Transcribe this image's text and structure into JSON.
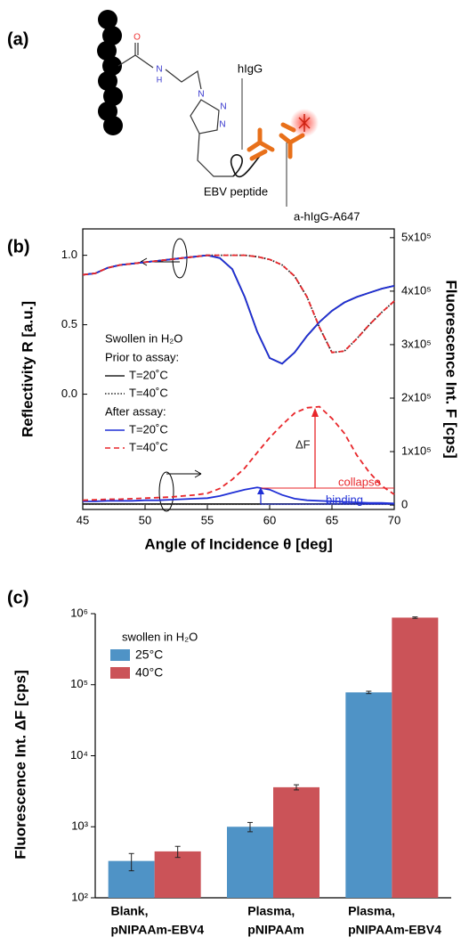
{
  "panels": {
    "a": "(a)",
    "b": "(b)",
    "c": "(c)"
  },
  "diagram": {
    "atoms": [
      "O",
      "N",
      "H",
      "N",
      "N",
      "N"
    ],
    "labels": [
      "hIgG",
      "EBV peptide",
      "a-hIgG-A647"
    ]
  },
  "chart_data": [
    {
      "type": "line",
      "x_label": "Angle of Incidence θ [deg]",
      "y_label": "Reflectivity R [a.u.]",
      "y2_label": "Fluorescence Int. F [cps]",
      "x": [
        45,
        46,
        47,
        48,
        49,
        50,
        51,
        52,
        53,
        54,
        55,
        56,
        57,
        58,
        59,
        60,
        61,
        62,
        63,
        64,
        65,
        66,
        67,
        68,
        69,
        70
      ],
      "xlim": [
        45,
        70
      ],
      "xticks": [
        45,
        50,
        55,
        60,
        65,
        70
      ],
      "ylim": [
        -0.83,
        1.19
      ],
      "yticks": [
        {
          "value": 0,
          "label": "0.0"
        },
        0.5,
        {
          "value": 1,
          "label": "1.0"
        }
      ],
      "y2lim": [
        -8200,
        516400
      ],
      "y2ticks": [
        0,
        {
          "value": 100000,
          "label": "1x10⁵"
        },
        {
          "value": 200000,
          "label": "2x10⁵"
        },
        {
          "value": 300000,
          "label": "3x10⁵"
        },
        {
          "value": 400000,
          "label": "4x10⁵"
        },
        {
          "value": 500000,
          "label": "5x10⁵"
        }
      ],
      "legend_title": "Swollen in H₂O",
      "groups": [
        {
          "name": "Prior to assay:",
          "series": [
            {
              "name": "T=20˚C",
              "color": "#222222",
              "dash": "solid",
              "values": [
                0.86,
                0.87,
                0.91,
                0.93,
                0.94,
                0.95,
                0.96,
                0.97,
                0.98,
                0.99,
                1.0,
                0.98,
                0.9,
                0.7,
                0.45,
                0.26,
                0.22,
                0.3,
                0.42,
                0.52,
                0.6,
                0.66,
                0.7,
                0.73,
                0.76,
                0.78
              ],
              "y2_values": [
                2000,
                2000,
                2000,
                2000,
                2000,
                2000,
                2000,
                2000,
                2000,
                2000,
                2000,
                2000,
                2000,
                2000,
                2000,
                2000,
                2000,
                2000,
                2000,
                2000,
                2000,
                2000,
                2000,
                2000,
                2000,
                2000
              ]
            },
            {
              "name": "T=40˚C",
              "color": "#222222",
              "dash": "dotted",
              "values": [
                0.86,
                0.87,
                0.91,
                0.93,
                0.94,
                0.95,
                0.96,
                0.97,
                0.98,
                0.99,
                1.0,
                1.0,
                1.0,
                1.0,
                0.99,
                0.97,
                0.93,
                0.85,
                0.7,
                0.48,
                0.3,
                0.31,
                0.4,
                0.5,
                0.59,
                0.67
              ],
              "y2_values": [
                2000,
                2000,
                2000,
                2000,
                2000,
                2000,
                2000,
                2000,
                2000,
                2000,
                2000,
                2000,
                2000,
                2000,
                2000,
                2000,
                2000,
                2000,
                2000,
                2000,
                2000,
                2000,
                2000,
                2000,
                2000,
                2000
              ]
            }
          ]
        },
        {
          "name": "After assay:",
          "series": [
            {
              "name": "T=20˚C",
              "color": "#1f2fd6",
              "dash": "solid",
              "values": [
                0.86,
                0.87,
                0.91,
                0.93,
                0.94,
                0.95,
                0.96,
                0.97,
                0.98,
                0.99,
                1.0,
                0.98,
                0.9,
                0.7,
                0.45,
                0.26,
                0.22,
                0.3,
                0.42,
                0.52,
                0.6,
                0.66,
                0.7,
                0.73,
                0.76,
                0.78
              ],
              "y2_values": [
                7000,
                7000,
                8000,
                8000,
                8000,
                9000,
                9000,
                10000,
                11000,
                12000,
                13000,
                17000,
                23000,
                29000,
                33000,
                29000,
                19000,
                12000,
                9000,
                8000,
                7000,
                6000,
                5000,
                4000,
                4000,
                3000
              ]
            },
            {
              "name": "T=40˚C",
              "color": "#e8262a",
              "dash": "dashed",
              "values": [
                0.86,
                0.87,
                0.91,
                0.93,
                0.94,
                0.95,
                0.96,
                0.97,
                0.98,
                0.99,
                1.0,
                1.0,
                1.0,
                1.0,
                0.99,
                0.97,
                0.93,
                0.85,
                0.7,
                0.48,
                0.3,
                0.31,
                0.4,
                0.5,
                0.59,
                0.67
              ],
              "y2_values": [
                9000,
                10000,
                11000,
                11000,
                12000,
                13000,
                14000,
                15000,
                17000,
                19000,
                22000,
                31000,
                48000,
                69000,
                98000,
                126000,
                150000,
                172000,
                182000,
                184000,
                162000,
                134000,
                93000,
                61000,
                36000,
                20000
              ]
            }
          ]
        }
      ],
      "annotations": [
        "ΔF",
        "collapse",
        "binding"
      ]
    },
    {
      "type": "bar",
      "y_label": "Fluorescence Int. ΔF [cps]",
      "log_y": true,
      "ylim": [
        100,
        1000000
      ],
      "yticks": [
        {
          "value": 100,
          "label": "10²"
        },
        {
          "value": 1000,
          "label": "10³"
        },
        {
          "value": 10000,
          "label": "10⁴"
        },
        {
          "value": 100000,
          "label": "10⁵"
        },
        {
          "value": 1000000,
          "label": "10⁶"
        }
      ],
      "categories": [
        [
          "Blank,",
          "pNIPAAm-EBV4"
        ],
        [
          "Plasma,",
          "pNIPAAm"
        ],
        [
          "Plasma,",
          "pNIPAAm-EBV4"
        ]
      ],
      "legend_title": "swollen in H₂O",
      "series": [
        {
          "name": "25°C",
          "color": "#4f93c6",
          "values": [
            330,
            1000,
            78000
          ],
          "errors": [
            90,
            150,
            3000
          ]
        },
        {
          "name": "40°C",
          "color": "#cb5358",
          "values": [
            450,
            3600,
            880000
          ],
          "errors": [
            80,
            300,
            20000
          ]
        }
      ]
    }
  ]
}
